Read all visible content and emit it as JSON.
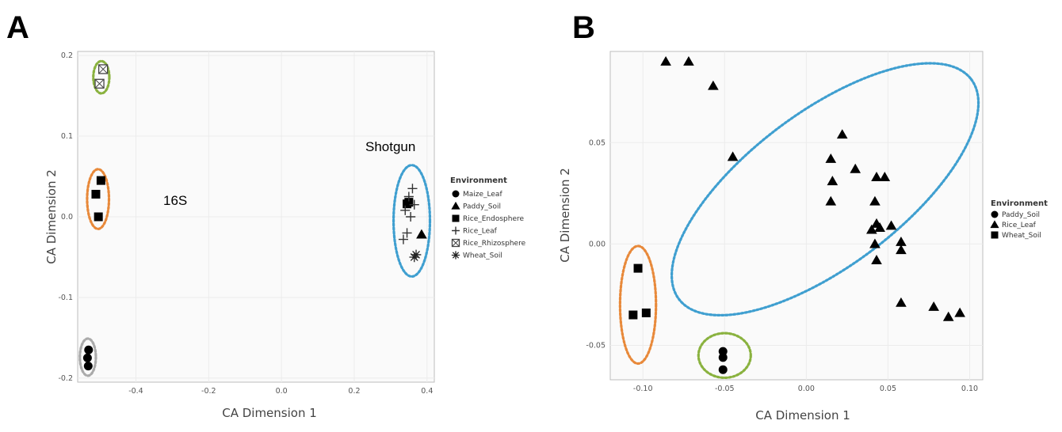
{
  "chart_data": [
    {
      "panel": "A",
      "type": "scatter",
      "xlabel": "CA Dimension 1",
      "ylabel": "CA Dimension 2",
      "xlim": [
        -0.56,
        0.42
      ],
      "ylim": [
        -0.205,
        0.205
      ],
      "xticks": [
        -0.4,
        -0.2,
        0.0,
        0.2,
        0.4
      ],
      "yticks": [
        -0.2,
        -0.1,
        0.0,
        0.1,
        0.2
      ],
      "xtick_labels": [
        "-0.4",
        "-0.2",
        "0.0",
        "0.2",
        "0.4"
      ],
      "ytick_labels": [
        "-0.2",
        "-0.1",
        "0.0",
        "0.1",
        "0.2"
      ],
      "grid": true,
      "legend": {
        "title": "Environment",
        "placement": "right",
        "entries": [
          {
            "label": "Maize_Leaf",
            "marker": "circle"
          },
          {
            "label": "Paddy_Soil",
            "marker": "triangle"
          },
          {
            "label": "Rice_Endosphere",
            "marker": "square"
          },
          {
            "label": "Rice_Leaf",
            "marker": "plus"
          },
          {
            "label": "Rice_Rhizosphere",
            "marker": "boxx"
          },
          {
            "label": "Wheat_Soil",
            "marker": "asterisk"
          }
        ]
      },
      "series": [
        {
          "name": "Maize_Leaf",
          "marker": "circle",
          "points": [
            [
              -0.53,
              -0.165
            ],
            [
              -0.533,
              -0.175
            ],
            [
              -0.531,
              -0.185
            ]
          ]
        },
        {
          "name": "Paddy_Soil",
          "marker": "triangle",
          "points": [
            [
              0.385,
              -0.022
            ]
          ]
        },
        {
          "name": "Rice_Endosphere",
          "marker": "square",
          "points": [
            [
              -0.496,
              0.045
            ],
            [
              -0.51,
              0.028
            ],
            [
              -0.503,
              0.0
            ],
            [
              0.35,
              0.018
            ],
            [
              0.345,
              0.016
            ]
          ]
        },
        {
          "name": "Rice_Leaf",
          "marker": "plus",
          "points": [
            [
              0.35,
              0.025
            ],
            [
              0.36,
              0.035
            ],
            [
              0.34,
              0.008
            ],
            [
              0.355,
              0.0
            ],
            [
              0.345,
              -0.02
            ],
            [
              0.335,
              -0.028
            ],
            [
              0.365,
              0.015
            ]
          ]
        },
        {
          "name": "Rice_Rhizosphere",
          "marker": "boxx",
          "points": [
            [
              -0.49,
              0.183
            ],
            [
              -0.5,
              0.165
            ]
          ]
        },
        {
          "name": "Wheat_Soil",
          "marker": "asterisk",
          "points": [
            [
              0.365,
              -0.05
            ],
            [
              0.37,
              -0.047
            ]
          ]
        }
      ],
      "annotations": [
        "16S",
        "Shotgun"
      ],
      "ellipses": [
        {
          "color": "#8ab23f",
          "cx": -0.495,
          "cy": 0.173,
          "rx": 0.022,
          "ry": 0.02,
          "rotation": 0
        },
        {
          "color": "#e8893a",
          "cx": -0.504,
          "cy": 0.022,
          "rx": 0.03,
          "ry": 0.037,
          "rotation": 0
        },
        {
          "color": "#aaaaaa",
          "cx": -0.532,
          "cy": -0.174,
          "rx": 0.022,
          "ry": 0.023,
          "rotation": 0
        },
        {
          "color": "#3f9fd0",
          "cx": 0.358,
          "cy": -0.005,
          "rx": 0.05,
          "ry": 0.069,
          "rotation": 0
        }
      ]
    },
    {
      "panel": "B",
      "type": "scatter",
      "xlabel": "CA Dimension 1",
      "ylabel": "CA Dimension 2",
      "xlim": [
        -0.12,
        0.108
      ],
      "ylim": [
        -0.067,
        0.095
      ],
      "xticks": [
        -0.1,
        -0.05,
        0.0,
        0.05,
        0.1
      ],
      "yticks": [
        -0.05,
        0.0,
        0.05
      ],
      "xtick_labels": [
        "-0.10",
        "-0.05",
        "0.00",
        "0.05",
        "0.10"
      ],
      "ytick_labels": [
        "-0.05",
        "0.00",
        "0.05"
      ],
      "grid": true,
      "legend": {
        "title": "Environment",
        "placement": "right",
        "entries": [
          {
            "label": "Paddy_Soil",
            "marker": "circle"
          },
          {
            "label": "Rice_Leaf",
            "marker": "triangle"
          },
          {
            "label": "Wheat_Soil",
            "marker": "square"
          }
        ]
      },
      "series": [
        {
          "name": "Paddy_Soil",
          "marker": "circle",
          "points": [
            [
              -0.051,
              -0.053
            ],
            [
              -0.051,
              -0.056
            ],
            [
              -0.051,
              -0.062
            ]
          ]
        },
        {
          "name": "Rice_Leaf",
          "marker": "triangle",
          "points": [
            [
              -0.086,
              0.09
            ],
            [
              -0.072,
              0.09
            ],
            [
              -0.057,
              0.078
            ],
            [
              -0.045,
              0.043
            ],
            [
              0.022,
              0.054
            ],
            [
              0.015,
              0.042
            ],
            [
              0.016,
              0.031
            ],
            [
              0.03,
              0.037
            ],
            [
              0.015,
              0.021
            ],
            [
              0.043,
              0.033
            ],
            [
              0.048,
              0.033
            ],
            [
              0.042,
              0.021
            ],
            [
              0.043,
              0.01
            ],
            [
              0.045,
              0.008
            ],
            [
              0.052,
              0.009
            ],
            [
              0.04,
              0.007
            ],
            [
              0.042,
              0.0
            ],
            [
              0.058,
              0.001
            ],
            [
              0.058,
              -0.003
            ],
            [
              0.043,
              -0.008
            ],
            [
              0.058,
              -0.029
            ],
            [
              0.078,
              -0.031
            ],
            [
              0.087,
              -0.036
            ],
            [
              0.094,
              -0.034
            ]
          ]
        },
        {
          "name": "Wheat_Soil",
          "marker": "square",
          "points": [
            [
              -0.103,
              -0.012
            ],
            [
              -0.106,
              -0.035
            ],
            [
              -0.098,
              -0.034
            ]
          ]
        }
      ],
      "ellipses": [
        {
          "color": "#e8893a",
          "cx": -0.103,
          "cy": -0.03,
          "rx": 0.011,
          "ry": 0.029,
          "rotation": 0
        },
        {
          "color": "#8ab23f",
          "cx": -0.05,
          "cy": -0.055,
          "rx": 0.016,
          "ry": 0.011,
          "rotation": 0
        },
        {
          "color": "#3f9fd0",
          "cx": 0.0115,
          "cy": 0.027,
          "rx": 0.112,
          "ry": 0.038,
          "rotation": 37
        }
      ]
    }
  ]
}
